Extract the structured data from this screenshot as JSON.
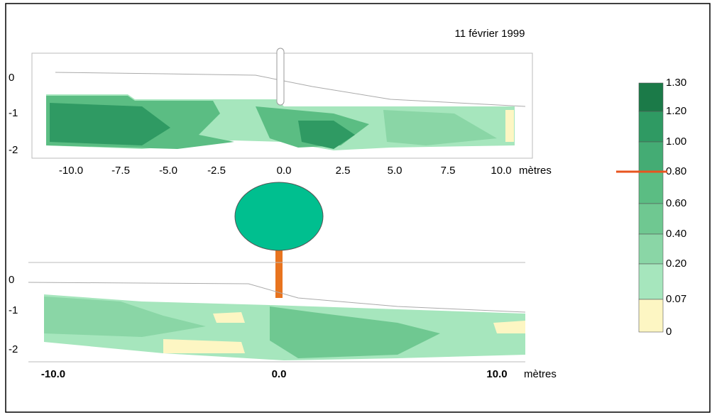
{
  "date": "11 février 1999",
  "top_panel": {
    "y_ticks": [
      "0",
      "-1",
      "-2"
    ],
    "x_ticks": [
      "-10.0",
      "-7.5",
      "-5.0",
      "-2.5",
      "0.0",
      "2.5",
      "5.0",
      "7.5",
      "10.0"
    ],
    "x_unit": "mètres"
  },
  "bottom_panel": {
    "y_ticks": [
      "0",
      "-1",
      "-2"
    ],
    "x_ticks": [
      "-10.0",
      "0.0",
      "10.0"
    ],
    "x_unit": "mètres"
  },
  "legend": {
    "levels": [
      "1.30",
      "1.20",
      "1.00",
      "0.80",
      "0.60",
      "0.40",
      "0.20",
      "0.07",
      "0"
    ]
  }
}
